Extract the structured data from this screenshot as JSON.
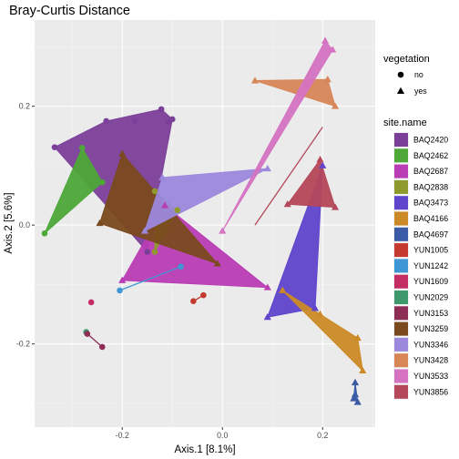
{
  "chart_data": {
    "type": "scatter",
    "title": "Bray-Curtis Distance",
    "xlabel": "Axis.1   [8.1%]",
    "ylabel": "Axis.2   [5.6%]",
    "xlim": [
      -0.375,
      0.305
    ],
    "ylim": [
      -0.34,
      0.345
    ],
    "x_ticks": [
      -0.2,
      0.0,
      0.2
    ],
    "x_tick_labels": [
      "-0.2",
      "0.0",
      "0.2"
    ],
    "y_ticks": [
      -0.2,
      0.0,
      0.2
    ],
    "y_tick_labels": [
      "-0.2",
      "0.0",
      "0.2"
    ],
    "grid": true,
    "legend_position": "right",
    "shape_legend": {
      "title": "vegetation",
      "items": [
        {
          "label": "no",
          "shape": "circle"
        },
        {
          "label": "yes",
          "shape": "triangle"
        }
      ]
    },
    "color_legend": {
      "title": "site.name",
      "items": [
        {
          "label": "BAQ2420",
          "color": "#7B3F99"
        },
        {
          "label": "BAQ2462",
          "color": "#4DA838"
        },
        {
          "label": "BAQ2687",
          "color": "#B93DB5"
        },
        {
          "label": "BAQ2838",
          "color": "#8E9A2E"
        },
        {
          "label": "BAQ3473",
          "color": "#5E45CC"
        },
        {
          "label": "BAQ4166",
          "color": "#CB8A26"
        },
        {
          "label": "BAQ4697",
          "color": "#3B5BA6"
        },
        {
          "label": "YUN1005",
          "color": "#C53A2E"
        },
        {
          "label": "YUN1242",
          "color": "#3E97D4"
        },
        {
          "label": "YUN1609",
          "color": "#C42D63"
        },
        {
          "label": "YUN2029",
          "color": "#3E9A6C"
        },
        {
          "label": "YUN3153",
          "color": "#8E2D55"
        },
        {
          "label": "YUN3259",
          "color": "#7A4A1E"
        },
        {
          "label": "YUN3346",
          "color": "#9C88DD"
        },
        {
          "label": "YUN3428",
          "color": "#D88658"
        },
        {
          "label": "YUN3533",
          "color": "#D573C2"
        },
        {
          "label": "YUN3856",
          "color": "#B4475A"
        }
      ]
    },
    "series": [
      {
        "name": "BAQ2420",
        "color": "#7B3F99",
        "shape": "circle",
        "points": [
          [
            -0.335,
            0.131
          ],
          [
            -0.232,
            0.175
          ],
          [
            -0.15,
            -0.045
          ],
          [
            -0.122,
            0.195
          ],
          [
            -0.108,
            0.173
          ],
          [
            -0.1,
            0.178
          ],
          [
            -0.175,
            0.175
          ]
        ]
      },
      {
        "name": "BAQ2462",
        "color": "#4DA838",
        "shape": "circle",
        "points": [
          [
            -0.355,
            -0.014
          ],
          [
            -0.28,
            0.13
          ],
          [
            -0.24,
            0.072
          ]
        ]
      },
      {
        "name": "BAQ2687",
        "color": "#B93DB5",
        "shape": "triangle",
        "points": [
          [
            -0.2,
            -0.093
          ],
          [
            -0.115,
            0.033
          ],
          [
            0.09,
            -0.105
          ]
        ]
      },
      {
        "name": "BAQ2838",
        "color": "#8E9A2E",
        "shape": "circle",
        "points": [
          [
            -0.135,
            0.057
          ],
          [
            -0.09,
            0.025
          ],
          [
            -0.135,
            -0.045
          ]
        ]
      },
      {
        "name": "BAQ3473",
        "color": "#5E45CC",
        "shape": "triangle",
        "points": [
          [
            0.09,
            -0.155
          ],
          [
            0.185,
            -0.14
          ],
          [
            0.2,
            0.1
          ]
        ]
      },
      {
        "name": "BAQ4166",
        "color": "#CB8A26",
        "shape": "triangle",
        "points": [
          [
            0.12,
            -0.11
          ],
          [
            0.195,
            -0.15
          ],
          [
            0.27,
            -0.19
          ],
          [
            0.28,
            -0.245
          ]
        ]
      },
      {
        "name": "BAQ4697",
        "color": "#3B5BA6",
        "shape": "triangle",
        "points": [
          [
            0.265,
            -0.265
          ],
          [
            0.265,
            -0.285
          ],
          [
            0.262,
            -0.292
          ],
          [
            0.27,
            -0.298
          ]
        ]
      },
      {
        "name": "YUN1005",
        "color": "#C53A2E",
        "shape": "circle",
        "points": [
          [
            -0.058,
            -0.128
          ],
          [
            -0.038,
            -0.118
          ]
        ]
      },
      {
        "name": "YUN1242",
        "color": "#3E97D4",
        "shape": "circle",
        "points": [
          [
            -0.205,
            -0.11
          ],
          [
            -0.083,
            -0.07
          ]
        ]
      },
      {
        "name": "YUN1609",
        "color": "#C42D63",
        "shape": "circle",
        "points": [
          [
            -0.262,
            -0.13
          ]
        ]
      },
      {
        "name": "YUN2029",
        "color": "#3E9A6C",
        "shape": "circle",
        "points": [
          [
            -0.272,
            -0.18
          ]
        ]
      },
      {
        "name": "YUN3153",
        "color": "#8E2D55",
        "shape": "circle",
        "points": [
          [
            -0.27,
            -0.183
          ],
          [
            -0.24,
            -0.205
          ]
        ]
      },
      {
        "name": "YUN3259",
        "color": "#7A4A1E",
        "shape": "triangle",
        "points": [
          [
            -0.245,
            0.003
          ],
          [
            -0.2,
            0.12
          ],
          [
            -0.01,
            -0.065
          ]
        ]
      },
      {
        "name": "YUN3346",
        "color": "#9C88DD",
        "shape": "triangle",
        "points": [
          [
            -0.12,
            0.08
          ],
          [
            -0.155,
            -0.01
          ],
          [
            0.09,
            0.095
          ]
        ]
      },
      {
        "name": "YUN3428",
        "color": "#D88658",
        "shape": "triangle",
        "points": [
          [
            0.065,
            0.243
          ],
          [
            0.21,
            0.245
          ],
          [
            0.225,
            0.2
          ]
        ]
      },
      {
        "name": "YUN3533",
        "color": "#D573C2",
        "shape": "triangle",
        "points": [
          [
            0.0,
            -0.01
          ],
          [
            0.205,
            0.31
          ],
          [
            0.22,
            0.295
          ]
        ]
      },
      {
        "name": "YUN3856",
        "color": "#B4475A",
        "shape": "triangle",
        "points": [
          [
            0.13,
            0.035
          ],
          [
            0.195,
            0.11
          ],
          [
            0.225,
            0.03
          ]
        ]
      }
    ],
    "segments": [
      {
        "name": "YUN1242",
        "from": [
          -0.205,
          -0.11
        ],
        "to": [
          -0.083,
          -0.07
        ]
      },
      {
        "name": "YUN1005",
        "from": [
          -0.058,
          -0.128
        ],
        "to": [
          -0.038,
          -0.118
        ]
      },
      {
        "name": "YUN3153",
        "from": [
          -0.27,
          -0.183
        ],
        "to": [
          -0.24,
          -0.205
        ]
      },
      {
        "name": "YUN3856",
        "from": [
          0.065,
          0.0
        ],
        "to": [
          0.2,
          0.165
        ]
      }
    ]
  }
}
